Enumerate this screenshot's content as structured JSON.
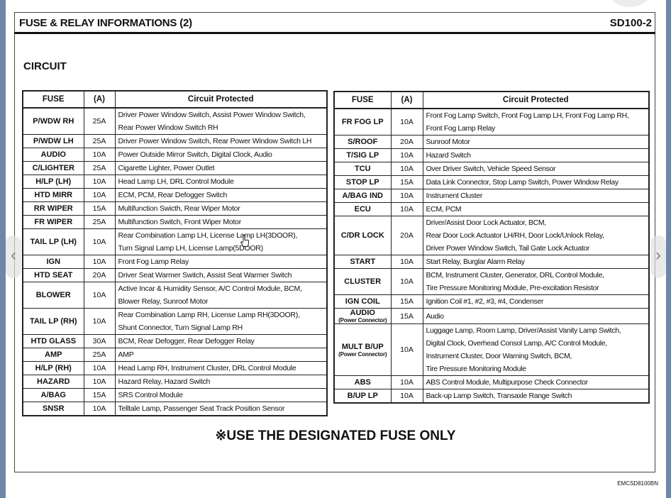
{
  "header": {
    "title": "FUSE & RELAY INFORMATIONS (2)",
    "code": "SD100-2"
  },
  "section": "CIRCUIT",
  "columns": {
    "fuse": "FUSE",
    "amp": "(A)",
    "circuit": "Circuit Protected"
  },
  "left_table": [
    {
      "fuse": "P/WDW RH",
      "amp": "25A",
      "circuit": [
        "Driver Power Window Switch, Assist Power Window Switch,",
        "Rear Power Window Switch RH"
      ]
    },
    {
      "fuse": "P/WDW LH",
      "amp": "25A",
      "circuit": [
        "Driver Power Window Switch, Rear Power Window Switch LH"
      ]
    },
    {
      "fuse": "AUDIO",
      "amp": "10A",
      "circuit": [
        "Power Outside Mirror Switch, Digital Clock, Audio"
      ]
    },
    {
      "fuse": "C/LIGHTER",
      "amp": "25A",
      "circuit": [
        "Cigarette Lighter, Power Outlet"
      ]
    },
    {
      "fuse": "H/LP (LH)",
      "amp": "10A",
      "circuit": [
        "Head Lamp LH, DRL Control Module"
      ]
    },
    {
      "fuse": "HTD MIRR",
      "amp": "10A",
      "circuit": [
        "ECM, PCM, Rear Defogger Switch"
      ]
    },
    {
      "fuse": "RR WIPER",
      "amp": "15A",
      "circuit": [
        "Multifunction Swicth, Rear Wiper Motor"
      ]
    },
    {
      "fuse": "FR WIPER",
      "amp": "25A",
      "circuit": [
        "Multifunction Switch, Front Wiper Motor"
      ]
    },
    {
      "fuse": "TAIL LP (LH)",
      "amp": "10A",
      "circuit": [
        "Rear Combination Lamp LH, License Lamp LH(3DOOR),",
        "Turn Signal Lamp LH, License Lamp(5DOOR)"
      ]
    },
    {
      "fuse": "IGN",
      "amp": "10A",
      "circuit": [
        "Front Fog Lamp Relay"
      ]
    },
    {
      "fuse": "HTD SEAT",
      "amp": "20A",
      "circuit": [
        "Driver Seat Warmer Switch, Assist Seat Warmer Switch"
      ]
    },
    {
      "fuse": "BLOWER",
      "amp": "10A",
      "circuit": [
        "Active Incar & Humidity Sensor, A/C Control Module, BCM,",
        "Blower Relay, Sunroof Motor"
      ]
    },
    {
      "fuse": "TAIL LP (RH)",
      "amp": "10A",
      "circuit": [
        "Rear Combination Lamp RH, License Lamp RH(3DOOR),",
        "Shunt Connector, Turn Signal Lamp RH"
      ]
    },
    {
      "fuse": "HTD GLASS",
      "amp": "30A",
      "circuit": [
        "BCM, Rear Defogger, Rear Defogger Relay"
      ]
    },
    {
      "fuse": "AMP",
      "amp": "25A",
      "circuit": [
        "AMP"
      ]
    },
    {
      "fuse": "H/LP (RH)",
      "amp": "10A",
      "circuit": [
        "Head Lamp RH, Instrument Cluster, DRL Control Module"
      ]
    },
    {
      "fuse": "HAZARD",
      "amp": "10A",
      "circuit": [
        "Hazard Relay, Hazard Switch"
      ]
    },
    {
      "fuse": "A/BAG",
      "amp": "15A",
      "circuit": [
        "SRS Control Module"
      ]
    },
    {
      "fuse": "SNSR",
      "amp": "10A",
      "circuit": [
        "Telltale Lamp, Passenger Seat Track Position Sensor"
      ]
    }
  ],
  "right_table": [
    {
      "fuse": "FR FOG LP",
      "amp": "10A",
      "circuit": [
        "Front Fog Lamp Switch, Front Fog Lamp LH, Front Fog Lamp RH,",
        "Front Fog Lamp Relay"
      ]
    },
    {
      "fuse": "S/ROOF",
      "amp": "20A",
      "circuit": [
        "Sunroof Motor"
      ]
    },
    {
      "fuse": "T/SIG LP",
      "amp": "10A",
      "circuit": [
        "Hazard Switch"
      ]
    },
    {
      "fuse": "TCU",
      "amp": "10A",
      "circuit": [
        "Over Driver Switch, Vehicle Speed Sensor"
      ]
    },
    {
      "fuse": "STOP LP",
      "amp": "15A",
      "circuit": [
        "Data Link Connector, Stop Lamp Switch, Power Window Relay"
      ]
    },
    {
      "fuse": "A/BAG IND",
      "amp": "10A",
      "circuit": [
        "Instrument Cluster"
      ]
    },
    {
      "fuse": "ECU",
      "amp": "10A",
      "circuit": [
        "ECM, PCM"
      ]
    },
    {
      "fuse": "C/DR LOCK",
      "amp": "20A",
      "circuit": [
        "Driver/Assist Door Lock Actuator, BCM,",
        "Rear Door Lock Actuator LH/RH, Door Lock/Unlock Relay,",
        "Driver Power Window Switch, Tail Gate Lock Actuator"
      ]
    },
    {
      "fuse": "START",
      "amp": "10A",
      "circuit": [
        "Start Relay, Burglar Alarm Relay"
      ]
    },
    {
      "fuse": "CLUSTER",
      "amp": "10A",
      "circuit": [
        "BCM, Instrument Cluster, Generator, DRL Control Module,",
        "Tire Pressure Monitoring Module, Pre-excitation Resistor"
      ]
    },
    {
      "fuse": "IGN COIL",
      "amp": "15A",
      "circuit": [
        "Ignition Coil #1, #2, #3, #4, Condenser"
      ]
    },
    {
      "fuse": "AUDIO",
      "sub": "(Power Connector)",
      "amp": "15A",
      "circuit": [
        "Audio"
      ]
    },
    {
      "fuse": "MULT B/UP",
      "sub": "(Power Connector)",
      "amp": "10A",
      "circuit": [
        "Luggage Lamp, Room Lamp, Driver/Assist Vanity Lamp Switch,",
        "Digital Clock, Overhead Consol Lamp, A/C Control Module,",
        "Instrument Cluster, Door Warning Switch, BCM,",
        "Tire Pressure Monitoring Module"
      ]
    },
    {
      "fuse": "ABS",
      "amp": "10A",
      "circuit": [
        "ABS Control Module, Multipurpose Check Connector"
      ]
    },
    {
      "fuse": "B/UP LP",
      "amp": "10A",
      "circuit": [
        "Back-up Lamp Switch, Transaxle Range Switch"
      ]
    }
  ],
  "note": "※USE THE DESIGNATED FUSE ONLY",
  "footer_code": "EMCSD8100BN",
  "nav": {
    "prev_icon": "chevron-left-icon",
    "next_icon": "chevron-right-icon",
    "prev": "‹",
    "next": "›"
  }
}
